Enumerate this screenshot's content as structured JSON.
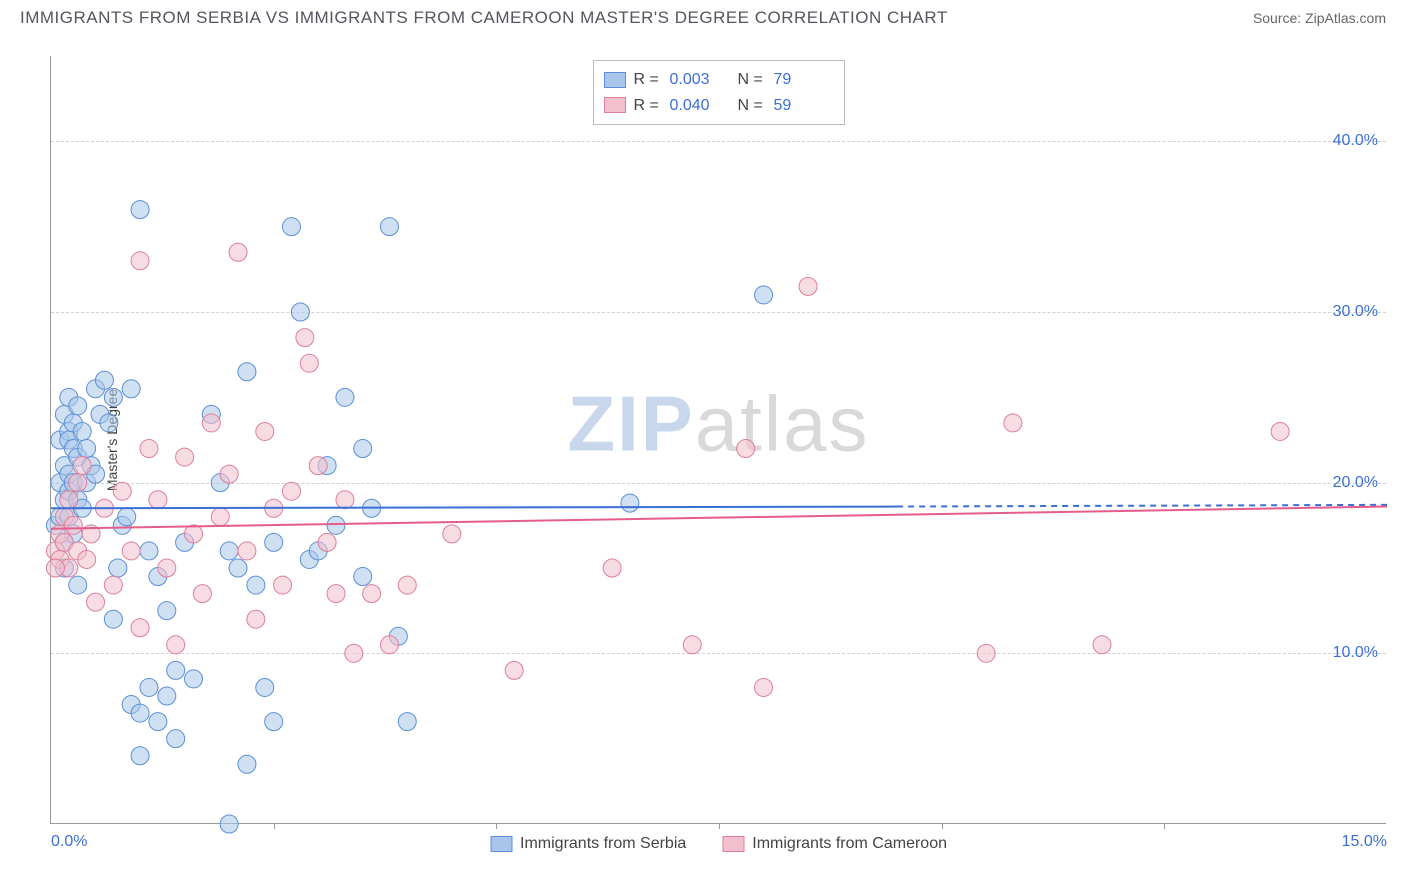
{
  "title": "IMMIGRANTS FROM SERBIA VS IMMIGRANTS FROM CAMEROON MASTER'S DEGREE CORRELATION CHART",
  "source": "Source: ZipAtlas.com",
  "ylabel": "Master's Degree",
  "watermark_zip": "ZIP",
  "watermark_atlas": "atlas",
  "chart": {
    "type": "scatter",
    "xlim": [
      0,
      15
    ],
    "ylim": [
      0,
      45
    ],
    "xticks": [
      {
        "pos": 0.0,
        "label": "0.0%",
        "align": "left"
      },
      {
        "pos": 15.0,
        "label": "15.0%",
        "align": "right"
      }
    ],
    "xtick_marks": [
      2.5,
      5.0,
      7.5,
      10.0,
      12.5
    ],
    "yticks": [
      {
        "pos": 10.0,
        "label": "10.0%"
      },
      {
        "pos": 20.0,
        "label": "20.0%"
      },
      {
        "pos": 30.0,
        "label": "30.0%"
      },
      {
        "pos": 40.0,
        "label": "40.0%"
      }
    ],
    "grid_color": "#d0d0d0",
    "background_color": "#ffffff",
    "marker_radius": 9,
    "marker_opacity": 0.55,
    "series": [
      {
        "name": "Immigrants from Serbia",
        "fill": "#a9c6ea",
        "stroke": "#5b8fd6",
        "R": "0.003",
        "N": "79",
        "trend": {
          "x1": 0,
          "y1": 18.5,
          "x2_solid": 9.5,
          "y2_solid": 18.6,
          "x2": 15,
          "y2": 18.7,
          "color": "#3b6fd6",
          "width": 2
        },
        "points": [
          [
            0.05,
            17.5
          ],
          [
            0.1,
            22.5
          ],
          [
            0.1,
            20.0
          ],
          [
            0.1,
            18.0
          ],
          [
            0.15,
            24.0
          ],
          [
            0.15,
            21.0
          ],
          [
            0.15,
            19.0
          ],
          [
            0.15,
            16.5
          ],
          [
            0.2,
            25.0
          ],
          [
            0.2,
            23.0
          ],
          [
            0.2,
            22.5
          ],
          [
            0.2,
            20.5
          ],
          [
            0.2,
            19.5
          ],
          [
            0.2,
            18.0
          ],
          [
            0.25,
            23.5
          ],
          [
            0.25,
            22.0
          ],
          [
            0.25,
            20.0
          ],
          [
            0.25,
            17.0
          ],
          [
            0.3,
            24.5
          ],
          [
            0.3,
            21.5
          ],
          [
            0.3,
            19.0
          ],
          [
            0.35,
            23.0
          ],
          [
            0.35,
            18.5
          ],
          [
            0.4,
            22.0
          ],
          [
            0.4,
            20.0
          ],
          [
            0.45,
            21.0
          ],
          [
            0.5,
            25.5
          ],
          [
            0.5,
            20.5
          ],
          [
            0.55,
            24.0
          ],
          [
            0.6,
            26.0
          ],
          [
            0.65,
            23.5
          ],
          [
            0.7,
            25.0
          ],
          [
            0.7,
            12.0
          ],
          [
            0.75,
            15.0
          ],
          [
            0.8,
            17.5
          ],
          [
            0.85,
            18.0
          ],
          [
            0.9,
            25.5
          ],
          [
            0.9,
            7.0
          ],
          [
            1.0,
            36.0
          ],
          [
            1.0,
            4.0
          ],
          [
            1.0,
            6.5
          ],
          [
            1.1,
            16.0
          ],
          [
            1.1,
            8.0
          ],
          [
            1.2,
            14.5
          ],
          [
            1.2,
            6.0
          ],
          [
            1.3,
            12.5
          ],
          [
            1.3,
            7.5
          ],
          [
            1.4,
            9.0
          ],
          [
            1.4,
            5.0
          ],
          [
            1.5,
            16.5
          ],
          [
            1.6,
            8.5
          ],
          [
            1.8,
            24.0
          ],
          [
            1.9,
            20.0
          ],
          [
            2.0,
            16.0
          ],
          [
            2.0,
            0.0
          ],
          [
            2.1,
            15.0
          ],
          [
            2.2,
            26.5
          ],
          [
            2.2,
            3.5
          ],
          [
            2.3,
            14.0
          ],
          [
            2.4,
            8.0
          ],
          [
            2.5,
            16.5
          ],
          [
            2.5,
            6.0
          ],
          [
            2.7,
            35.0
          ],
          [
            2.8,
            30.0
          ],
          [
            2.9,
            15.5
          ],
          [
            3.0,
            16.0
          ],
          [
            3.1,
            21.0
          ],
          [
            3.2,
            17.5
          ],
          [
            3.3,
            25.0
          ],
          [
            3.5,
            14.5
          ],
          [
            3.5,
            22.0
          ],
          [
            3.6,
            18.5
          ],
          [
            3.8,
            35.0
          ],
          [
            3.9,
            11.0
          ],
          [
            4.0,
            6.0
          ],
          [
            6.5,
            18.8
          ],
          [
            8.0,
            31.0
          ],
          [
            0.15,
            15.0
          ],
          [
            0.3,
            14.0
          ]
        ]
      },
      {
        "name": "Immigrants from Cameroon",
        "fill": "#f2c0cc",
        "stroke": "#dd7f9a",
        "R": "0.040",
        "N": "59",
        "trend": {
          "x1": 0,
          "y1": 17.3,
          "x2_solid": 15,
          "y2_solid": 18.6,
          "x2": 15,
          "y2": 18.6,
          "color": "#e55e8b",
          "width": 2
        },
        "points": [
          [
            0.05,
            16.0
          ],
          [
            0.1,
            17.0
          ],
          [
            0.1,
            15.5
          ],
          [
            0.15,
            18.0
          ],
          [
            0.15,
            16.5
          ],
          [
            0.2,
            19.0
          ],
          [
            0.2,
            15.0
          ],
          [
            0.25,
            17.5
          ],
          [
            0.3,
            20.0
          ],
          [
            0.3,
            16.0
          ],
          [
            0.35,
            21.0
          ],
          [
            0.4,
            15.5
          ],
          [
            0.45,
            17.0
          ],
          [
            0.5,
            13.0
          ],
          [
            0.6,
            18.5
          ],
          [
            0.7,
            14.0
          ],
          [
            0.8,
            19.5
          ],
          [
            0.9,
            16.0
          ],
          [
            1.0,
            33.0
          ],
          [
            1.0,
            11.5
          ],
          [
            1.1,
            22.0
          ],
          [
            1.2,
            19.0
          ],
          [
            1.3,
            15.0
          ],
          [
            1.4,
            10.5
          ],
          [
            1.5,
            21.5
          ],
          [
            1.6,
            17.0
          ],
          [
            1.7,
            13.5
          ],
          [
            1.8,
            23.5
          ],
          [
            1.9,
            18.0
          ],
          [
            2.0,
            20.5
          ],
          [
            2.1,
            33.5
          ],
          [
            2.2,
            16.0
          ],
          [
            2.3,
            12.0
          ],
          [
            2.4,
            23.0
          ],
          [
            2.5,
            18.5
          ],
          [
            2.6,
            14.0
          ],
          [
            2.7,
            19.5
          ],
          [
            2.85,
            28.5
          ],
          [
            2.9,
            27.0
          ],
          [
            3.0,
            21.0
          ],
          [
            3.1,
            16.5
          ],
          [
            3.2,
            13.5
          ],
          [
            3.3,
            19.0
          ],
          [
            3.4,
            10.0
          ],
          [
            3.6,
            13.5
          ],
          [
            3.8,
            10.5
          ],
          [
            4.0,
            14.0
          ],
          [
            4.5,
            17.0
          ],
          [
            5.2,
            9.0
          ],
          [
            6.3,
            15.0
          ],
          [
            7.2,
            10.5
          ],
          [
            7.8,
            22.0
          ],
          [
            8.0,
            8.0
          ],
          [
            8.5,
            31.5
          ],
          [
            10.5,
            10.0
          ],
          [
            10.8,
            23.5
          ],
          [
            11.8,
            10.5
          ],
          [
            13.8,
            23.0
          ],
          [
            0.05,
            15.0
          ]
        ]
      }
    ]
  },
  "legend_top": {
    "r_label": "R =",
    "n_label": "N ="
  },
  "colors": {
    "axis_text": "#3b6fd6",
    "title_text": "#555560"
  }
}
